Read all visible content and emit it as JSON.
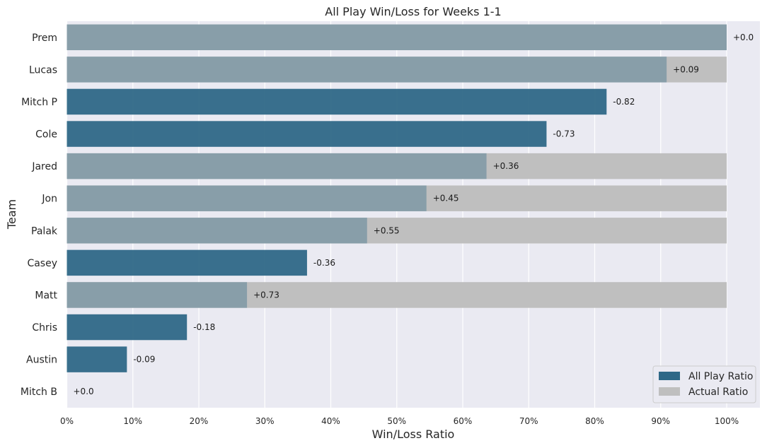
{
  "chart_data": {
    "type": "bar",
    "orientation": "horizontal",
    "title": "All Play Win/Loss for Weeks 1-1",
    "xlabel": "Win/Loss Ratio",
    "ylabel": "Team",
    "xlim": [
      0,
      1
    ],
    "x_ticks": [
      "0%",
      "10%",
      "20%",
      "30%",
      "40%",
      "50%",
      "60%",
      "70%",
      "80%",
      "90%",
      "100%"
    ],
    "grid": true,
    "legend_position": "bottom-right",
    "categories": [
      "Prem",
      "Lucas",
      "Mitch P",
      "Cole",
      "Jared",
      "Jon",
      "Palak",
      "Casey",
      "Matt",
      "Chris",
      "Austin",
      "Mitch B"
    ],
    "series": [
      {
        "name": "All Play Ratio",
        "color": "#2f6887",
        "values": [
          1.0,
          0.909,
          0.818,
          0.727,
          0.636,
          0.545,
          0.455,
          0.364,
          0.273,
          0.182,
          0.091,
          0.0
        ]
      },
      {
        "name": "Actual Ratio",
        "color": "#bfbfbf",
        "values": [
          1.0,
          1.0,
          0.0,
          0.0,
          1.0,
          1.0,
          1.0,
          0.0,
          1.0,
          0.0,
          0.0,
          0.0
        ]
      }
    ],
    "data_labels": [
      "+0.0",
      "+0.09",
      "-0.82",
      "-0.73",
      "+0.36",
      "+0.45",
      "+0.55",
      "-0.36",
      "+0.73",
      "-0.18",
      "-0.09",
      "+0.0"
    ]
  }
}
